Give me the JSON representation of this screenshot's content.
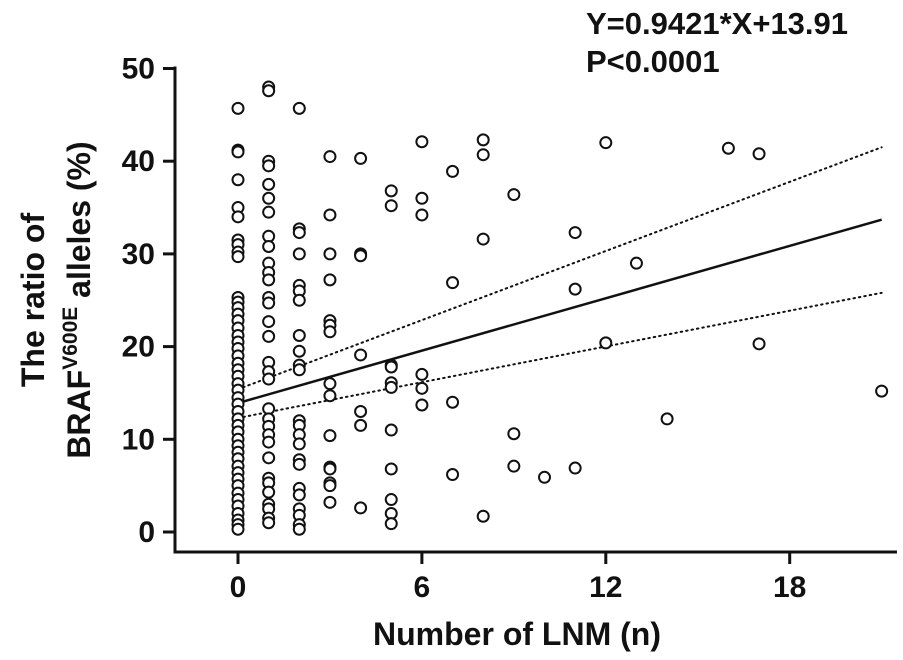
{
  "annotations": {
    "equation": "Y=0.9421*X+13.91",
    "pvalue": "P<0.0001"
  },
  "chart_data": {
    "type": "scatter",
    "title": "",
    "xlabel": "Number of LNM (n)",
    "ylabel_line1": "The ratio of",
    "ylabel_main": "BRAF",
    "ylabel_sup": "V600E",
    "ylabel_tail": " alleles (%)",
    "xlim": [
      -2,
      21.5
    ],
    "ylim": [
      -1,
      50
    ],
    "xticks": [
      0,
      6,
      12,
      18
    ],
    "yticks": [
      0,
      10,
      20,
      30,
      40,
      50
    ],
    "grid": false,
    "legend": "none",
    "marker": "open-circle",
    "regression": {
      "slope": 0.9421,
      "intercept": 13.91,
      "x_range": [
        0,
        21
      ]
    },
    "ci_band": {
      "upper": [
        [
          0,
          15.4
        ],
        [
          21,
          41.5
        ]
      ],
      "lower": [
        [
          0,
          12.3
        ],
        [
          21,
          25.8
        ]
      ]
    },
    "points": [
      [
        0,
        45.7
      ],
      [
        0,
        41.2
      ],
      [
        0,
        41.0
      ],
      [
        0,
        38.0
      ],
      [
        0,
        35.0
      ],
      [
        0,
        34.0
      ],
      [
        0,
        31.5
      ],
      [
        0,
        31.0
      ],
      [
        0,
        30.2
      ],
      [
        0,
        29.7
      ],
      [
        0,
        25.3
      ],
      [
        0,
        24.8
      ],
      [
        0,
        24.2
      ],
      [
        0,
        23.5
      ],
      [
        0,
        22.8
      ],
      [
        0,
        22.0
      ],
      [
        0,
        21.2
      ],
      [
        0,
        20.5
      ],
      [
        0,
        19.8
      ],
      [
        0,
        19.0
      ],
      [
        0,
        18.2
      ],
      [
        0,
        17.5
      ],
      [
        0,
        16.8
      ],
      [
        0,
        16.0
      ],
      [
        0,
        15.3
      ],
      [
        0,
        14.5
      ],
      [
        0,
        13.8
      ],
      [
        0,
        13.0
      ],
      [
        0,
        12.2
      ],
      [
        0,
        11.5
      ],
      [
        0,
        10.8
      ],
      [
        0,
        10.0
      ],
      [
        0,
        9.3
      ],
      [
        0,
        8.6
      ],
      [
        0,
        7.9
      ],
      [
        0,
        7.1
      ],
      [
        0,
        6.4
      ],
      [
        0,
        5.7
      ],
      [
        0,
        5.0
      ],
      [
        0,
        4.2
      ],
      [
        0,
        3.5
      ],
      [
        0,
        2.8
      ],
      [
        0,
        2.0
      ],
      [
        0,
        1.3
      ],
      [
        0,
        0.8
      ],
      [
        0,
        0.3
      ],
      [
        1,
        48.0
      ],
      [
        1,
        47.6
      ],
      [
        1,
        40.0
      ],
      [
        1,
        39.5
      ],
      [
        1,
        37.5
      ],
      [
        1,
        36.0
      ],
      [
        1,
        34.5
      ],
      [
        1,
        31.9
      ],
      [
        1,
        30.8
      ],
      [
        1,
        29.0
      ],
      [
        1,
        28.0
      ],
      [
        1,
        27.2
      ],
      [
        1,
        25.3
      ],
      [
        1,
        24.7
      ],
      [
        1,
        22.7
      ],
      [
        1,
        21.1
      ],
      [
        1,
        18.3
      ],
      [
        1,
        17.3
      ],
      [
        1,
        16.5
      ],
      [
        1,
        13.3
      ],
      [
        1,
        12.2
      ],
      [
        1,
        11.4
      ],
      [
        1,
        10.5
      ],
      [
        1,
        9.7
      ],
      [
        1,
        8.0
      ],
      [
        1,
        5.8
      ],
      [
        1,
        5.3
      ],
      [
        1,
        4.3
      ],
      [
        1,
        3.0
      ],
      [
        1,
        2.5
      ],
      [
        1,
        1.5
      ],
      [
        1,
        1.0
      ],
      [
        2,
        45.7
      ],
      [
        2,
        32.7
      ],
      [
        2,
        32.3
      ],
      [
        2,
        30.0
      ],
      [
        2,
        26.6
      ],
      [
        2,
        26.0
      ],
      [
        2,
        25.0
      ],
      [
        2,
        21.2
      ],
      [
        2,
        19.5
      ],
      [
        2,
        18.0
      ],
      [
        2,
        17.5
      ],
      [
        2,
        12.0
      ],
      [
        2,
        11.5
      ],
      [
        2,
        10.5
      ],
      [
        2,
        9.5
      ],
      [
        2,
        7.8
      ],
      [
        2,
        7.3
      ],
      [
        2,
        4.7
      ],
      [
        2,
        4.0
      ],
      [
        2,
        2.5
      ],
      [
        2,
        1.8
      ],
      [
        2,
        0.8
      ],
      [
        2,
        0.3
      ],
      [
        3,
        40.5
      ],
      [
        3,
        34.2
      ],
      [
        3,
        30.0
      ],
      [
        3,
        27.2
      ],
      [
        3,
        22.8
      ],
      [
        3,
        22.3
      ],
      [
        3,
        21.6
      ],
      [
        3,
        16.0
      ],
      [
        3,
        14.7
      ],
      [
        3,
        10.4
      ],
      [
        3,
        7.0
      ],
      [
        3,
        6.8
      ],
      [
        3,
        5.3
      ],
      [
        3,
        5.0
      ],
      [
        3,
        3.2
      ],
      [
        4,
        40.3
      ],
      [
        4,
        30.0
      ],
      [
        4,
        29.8
      ],
      [
        4,
        19.1
      ],
      [
        4,
        13.0
      ],
      [
        4,
        11.5
      ],
      [
        4,
        2.6
      ],
      [
        5,
        36.8
      ],
      [
        5,
        35.2
      ],
      [
        5,
        18.0
      ],
      [
        5,
        17.8
      ],
      [
        5,
        16.1
      ],
      [
        5,
        15.6
      ],
      [
        5,
        11.0
      ],
      [
        5,
        6.8
      ],
      [
        5,
        3.5
      ],
      [
        5,
        2.0
      ],
      [
        5,
        0.9
      ],
      [
        6,
        42.1
      ],
      [
        6,
        36.0
      ],
      [
        6,
        34.2
      ],
      [
        6,
        17.0
      ],
      [
        6,
        15.5
      ],
      [
        6,
        13.7
      ],
      [
        7,
        38.9
      ],
      [
        7,
        26.9
      ],
      [
        7,
        14.0
      ],
      [
        7,
        6.2
      ],
      [
        8,
        42.3
      ],
      [
        8,
        40.7
      ],
      [
        8,
        31.6
      ],
      [
        8,
        1.7
      ],
      [
        9,
        36.4
      ],
      [
        9,
        10.6
      ],
      [
        9,
        7.1
      ],
      [
        10,
        5.9
      ],
      [
        11,
        32.3
      ],
      [
        11,
        26.2
      ],
      [
        11,
        6.9
      ],
      [
        12,
        42.0
      ],
      [
        12,
        20.4
      ],
      [
        13,
        29.0
      ],
      [
        14,
        12.2
      ],
      [
        16,
        41.4
      ],
      [
        17,
        40.8
      ],
      [
        17,
        20.3
      ],
      [
        21,
        15.2
      ]
    ]
  }
}
